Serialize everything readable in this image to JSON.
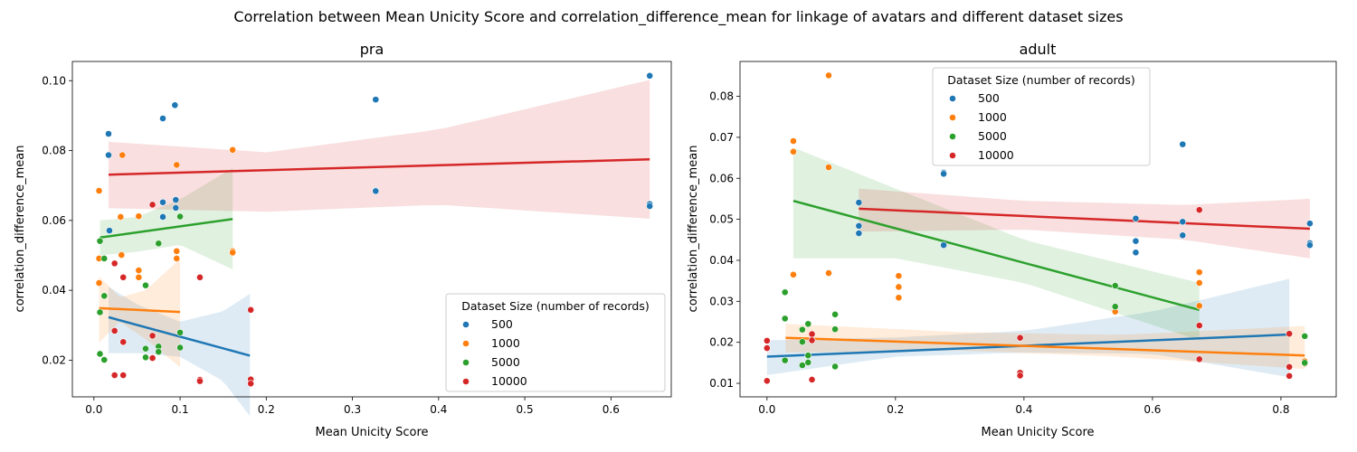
{
  "figure": {
    "title": "Correlation between Mean Unicity Score and correlation_difference_mean for linkage of avatars and different dataset sizes"
  },
  "colors": {
    "500": "#1f77b4",
    "1000": "#ff7f0e",
    "5000": "#2ca02c",
    "10000": "#d62728"
  },
  "chart_data": [
    {
      "type": "scatter",
      "title": "pra",
      "xlabel": "Mean Unicity Score",
      "ylabel": "correlation_difference_mean",
      "xlim": [
        -0.025,
        0.67
      ],
      "ylim": [
        0.0095,
        0.1055
      ],
      "xticks": [
        "0.0",
        "0.1",
        "0.2",
        "0.3",
        "0.4",
        "0.5",
        "0.6"
      ],
      "xtick_values": [
        0.0,
        0.1,
        0.2,
        0.3,
        0.4,
        0.5,
        0.6
      ],
      "yticks": [
        "0.02",
        "0.04",
        "0.06",
        "0.08",
        "0.10"
      ],
      "ytick_values": [
        0.02,
        0.04,
        0.06,
        0.08,
        0.1
      ],
      "grid": false,
      "legend": {
        "title": "Dataset Size (number of records)",
        "placement": "lower-right"
      },
      "series": [
        {
          "name": "500",
          "points": [
            [
              0.017,
              0.0848
            ],
            [
              0.017,
              0.0787
            ],
            [
              0.018,
              0.0571
            ],
            [
              0.08,
              0.0892
            ],
            [
              0.094,
              0.093
            ],
            [
              0.08,
              0.0652
            ],
            [
              0.08,
              0.061
            ],
            [
              0.095,
              0.0659
            ],
            [
              0.095,
              0.0636
            ],
            [
              0.327,
              0.0946
            ],
            [
              0.327,
              0.0686
            ],
            [
              0.327,
              0.0684
            ],
            [
              0.645,
              0.1014
            ],
            [
              0.645,
              0.0647
            ],
            [
              0.645,
              0.0641
            ]
          ],
          "fit": {
            "x": [
              0.017,
              0.181
            ],
            "y": [
              0.0323,
              0.0213
            ]
          },
          "band": {
            "x": [
              0.017,
              0.05,
              0.1,
              0.15,
              0.181
            ],
            "upper": [
              0.041,
              0.036,
              0.031,
              0.034,
              0.039
            ],
            "lower": [
              0.022,
              0.022,
              0.021,
              0.014,
              0.004
            ]
          }
        },
        {
          "name": "1000",
          "points": [
            [
              0.006,
              0.0685
            ],
            [
              0.006,
              0.0491
            ],
            [
              0.006,
              0.0421
            ],
            [
              0.033,
              0.0787
            ],
            [
              0.031,
              0.061
            ],
            [
              0.032,
              0.0501
            ],
            [
              0.052,
              0.0612
            ],
            [
              0.052,
              0.0457
            ],
            [
              0.052,
              0.0437
            ],
            [
              0.096,
              0.0759
            ],
            [
              0.096,
              0.0512
            ],
            [
              0.096,
              0.0491
            ],
            [
              0.161,
              0.0802
            ],
            [
              0.161,
              0.0512
            ],
            [
              0.161,
              0.0508
            ]
          ],
          "fit": {
            "x": [
              0.006,
              0.1
            ],
            "y": [
              0.0349,
              0.0338
            ]
          },
          "band": {
            "x": [
              0.006,
              0.03,
              0.06,
              0.1
            ],
            "upper": [
              0.044,
              0.038,
              0.04,
              0.049
            ],
            "lower": [
              0.025,
              0.031,
              0.026,
              0.018
            ]
          }
        },
        {
          "name": "5000",
          "points": [
            [
              0.007,
              0.0541
            ],
            [
              0.007,
              0.0337
            ],
            [
              0.007,
              0.0218
            ],
            [
              0.012,
              0.0491
            ],
            [
              0.012,
              0.0384
            ],
            [
              0.012,
              0.0201
            ],
            [
              0.06,
              0.0414
            ],
            [
              0.06,
              0.0233
            ],
            [
              0.06,
              0.0208
            ],
            [
              0.075,
              0.0534
            ],
            [
              0.075,
              0.0239
            ],
            [
              0.075,
              0.0224
            ],
            [
              0.1,
              0.0611
            ],
            [
              0.1,
              0.0279
            ],
            [
              0.1,
              0.0236
            ]
          ],
          "fit": {
            "x": [
              0.007,
              0.161
            ],
            "y": [
              0.0551,
              0.0604
            ]
          },
          "band": {
            "x": [
              0.007,
              0.05,
              0.1,
              0.161
            ],
            "upper": [
              0.06,
              0.061,
              0.066,
              0.075
            ],
            "lower": [
              0.05,
              0.051,
              0.053,
              0.046
            ]
          }
        },
        {
          "name": "10000",
          "points": [
            [
              0.024,
              0.0477
            ],
            [
              0.024,
              0.0284
            ],
            [
              0.024,
              0.0157
            ],
            [
              0.034,
              0.0437
            ],
            [
              0.034,
              0.0252
            ],
            [
              0.034,
              0.0157
            ],
            [
              0.068,
              0.0645
            ],
            [
              0.068,
              0.027
            ],
            [
              0.068,
              0.0206
            ],
            [
              0.123,
              0.0437
            ],
            [
              0.123,
              0.0144
            ],
            [
              0.123,
              0.014
            ],
            [
              0.182,
              0.0344
            ],
            [
              0.182,
              0.0145
            ],
            [
              0.182,
              0.0133
            ]
          ],
          "fit": {
            "x": [
              0.017,
              0.645
            ],
            "y": [
              0.0731,
              0.0775
            ]
          },
          "band": {
            "x": [
              0.017,
              0.2,
              0.4,
              0.645
            ],
            "upper": [
              0.0825,
              0.0795,
              0.086,
              0.1002
            ],
            "lower": [
              0.0635,
              0.0625,
              0.0645,
              0.0605
            ]
          }
        }
      ]
    },
    {
      "type": "scatter",
      "title": "adult",
      "xlabel": "Mean Unicity Score",
      "ylabel": "correlation_difference_mean",
      "xlim": [
        -0.042,
        0.886
      ],
      "ylim": [
        0.0067,
        0.0885
      ],
      "xticks": [
        "0.0",
        "0.2",
        "0.4",
        "0.6",
        "0.8"
      ],
      "xtick_values": [
        0.0,
        0.2,
        0.4,
        0.6,
        0.8
      ],
      "yticks": [
        "0.01",
        "0.02",
        "0.03",
        "0.04",
        "0.05",
        "0.06",
        "0.07",
        "0.08"
      ],
      "ytick_values": [
        0.01,
        0.02,
        0.03,
        0.04,
        0.05,
        0.06,
        0.07,
        0.08
      ],
      "grid": false,
      "legend": {
        "title": "Dataset Size (number of records)",
        "placement": "upper-center"
      },
      "series": [
        {
          "name": "500",
          "points": [
            [
              0.143,
              0.0541
            ],
            [
              0.143,
              0.0484
            ],
            [
              0.143,
              0.0466
            ],
            [
              0.275,
              0.0614
            ],
            [
              0.275,
              0.0611
            ],
            [
              0.275,
              0.0437
            ],
            [
              0.574,
              0.0502
            ],
            [
              0.574,
              0.0447
            ],
            [
              0.574,
              0.0419
            ],
            [
              0.647,
              0.0683
            ],
            [
              0.647,
              0.0494
            ],
            [
              0.647,
              0.0461
            ],
            [
              0.845,
              0.049
            ],
            [
              0.845,
              0.0442
            ],
            [
              0.845,
              0.0437
            ]
          ],
          "fit": {
            "x": [
              0.0,
              0.813
            ],
            "y": [
              0.0165,
              0.0219
            ]
          },
          "band": {
            "x": [
              0.0,
              0.2,
              0.4,
              0.6,
              0.813
            ],
            "upper": [
              0.0205,
              0.0212,
              0.0228,
              0.0275,
              0.0355
            ],
            "lower": [
              0.012,
              0.0165,
              0.0175,
              0.0172,
              0.0115
            ]
          }
        },
        {
          "name": "1000",
          "points": [
            [
              0.041,
              0.0691
            ],
            [
              0.041,
              0.0665
            ],
            [
              0.041,
              0.0365
            ],
            [
              0.096,
              0.0851
            ],
            [
              0.096,
              0.0627
            ],
            [
              0.096,
              0.0369
            ],
            [
              0.205,
              0.0362
            ],
            [
              0.205,
              0.0335
            ],
            [
              0.205,
              0.0309
            ],
            [
              0.542,
              0.0338
            ],
            [
              0.542,
              0.0285
            ],
            [
              0.542,
              0.0275
            ],
            [
              0.673,
              0.0371
            ],
            [
              0.673,
              0.0345
            ],
            [
              0.673,
              0.0289
            ],
            [
              0.837,
              0.0154
            ],
            [
              0.837,
              0.0148
            ]
          ],
          "fit": {
            "x": [
              0.029,
              0.837
            ],
            "y": [
              0.0211,
              0.0168
            ]
          },
          "band": {
            "x": [
              0.029,
              0.3,
              0.55,
              0.837
            ],
            "upper": [
              0.0245,
              0.0225,
              0.0218,
              0.024
            ],
            "lower": [
              0.0175,
              0.018,
              0.0165,
              0.0135
            ]
          }
        },
        {
          "name": "5000",
          "points": [
            [
              0.028,
              0.0322
            ],
            [
              0.028,
              0.0258
            ],
            [
              0.028,
              0.0156
            ],
            [
              0.055,
              0.0231
            ],
            [
              0.055,
              0.0201
            ],
            [
              0.055,
              0.0144
            ],
            [
              0.064,
              0.0245
            ],
            [
              0.064,
              0.0168
            ],
            [
              0.064,
              0.0151
            ],
            [
              0.106,
              0.0268
            ],
            [
              0.106,
              0.0232
            ],
            [
              0.106,
              0.0141
            ],
            [
              0.542,
              0.0338
            ],
            [
              0.542,
              0.0287
            ],
            [
              0.837,
              0.0215
            ],
            [
              0.837,
              0.015
            ]
          ],
          "fit": {
            "x": [
              0.041,
              0.673
            ],
            "y": [
              0.0545,
              0.0279
            ]
          },
          "band": {
            "x": [
              0.041,
              0.2,
              0.4,
              0.673
            ],
            "upper": [
              0.0675,
              0.0575,
              0.045,
              0.0345
            ],
            "lower": [
              0.0405,
              0.0405,
              0.0345,
              0.0205
            ]
          }
        },
        {
          "name": "10000",
          "points": [
            [
              0.0,
              0.0204
            ],
            [
              0.0,
              0.0186
            ],
            [
              0.0,
              0.0106
            ],
            [
              0.07,
              0.022
            ],
            [
              0.07,
              0.0205
            ],
            [
              0.07,
              0.0109
            ],
            [
              0.394,
              0.0211
            ],
            [
              0.394,
              0.0126
            ],
            [
              0.394,
              0.0119
            ],
            [
              0.673,
              0.0523
            ],
            [
              0.673,
              0.0241
            ],
            [
              0.673,
              0.0159
            ],
            [
              0.813,
              0.0221
            ],
            [
              0.813,
              0.014
            ],
            [
              0.813,
              0.0118
            ]
          ],
          "fit": {
            "x": [
              0.143,
              0.845
            ],
            "y": [
              0.0526,
              0.0477
            ]
          },
          "band": {
            "x": [
              0.143,
              0.4,
              0.65,
              0.845
            ],
            "upper": [
              0.0575,
              0.0545,
              0.0535,
              0.055
            ],
            "lower": [
              0.047,
              0.0475,
              0.045,
              0.0405
            ]
          }
        }
      ]
    }
  ]
}
